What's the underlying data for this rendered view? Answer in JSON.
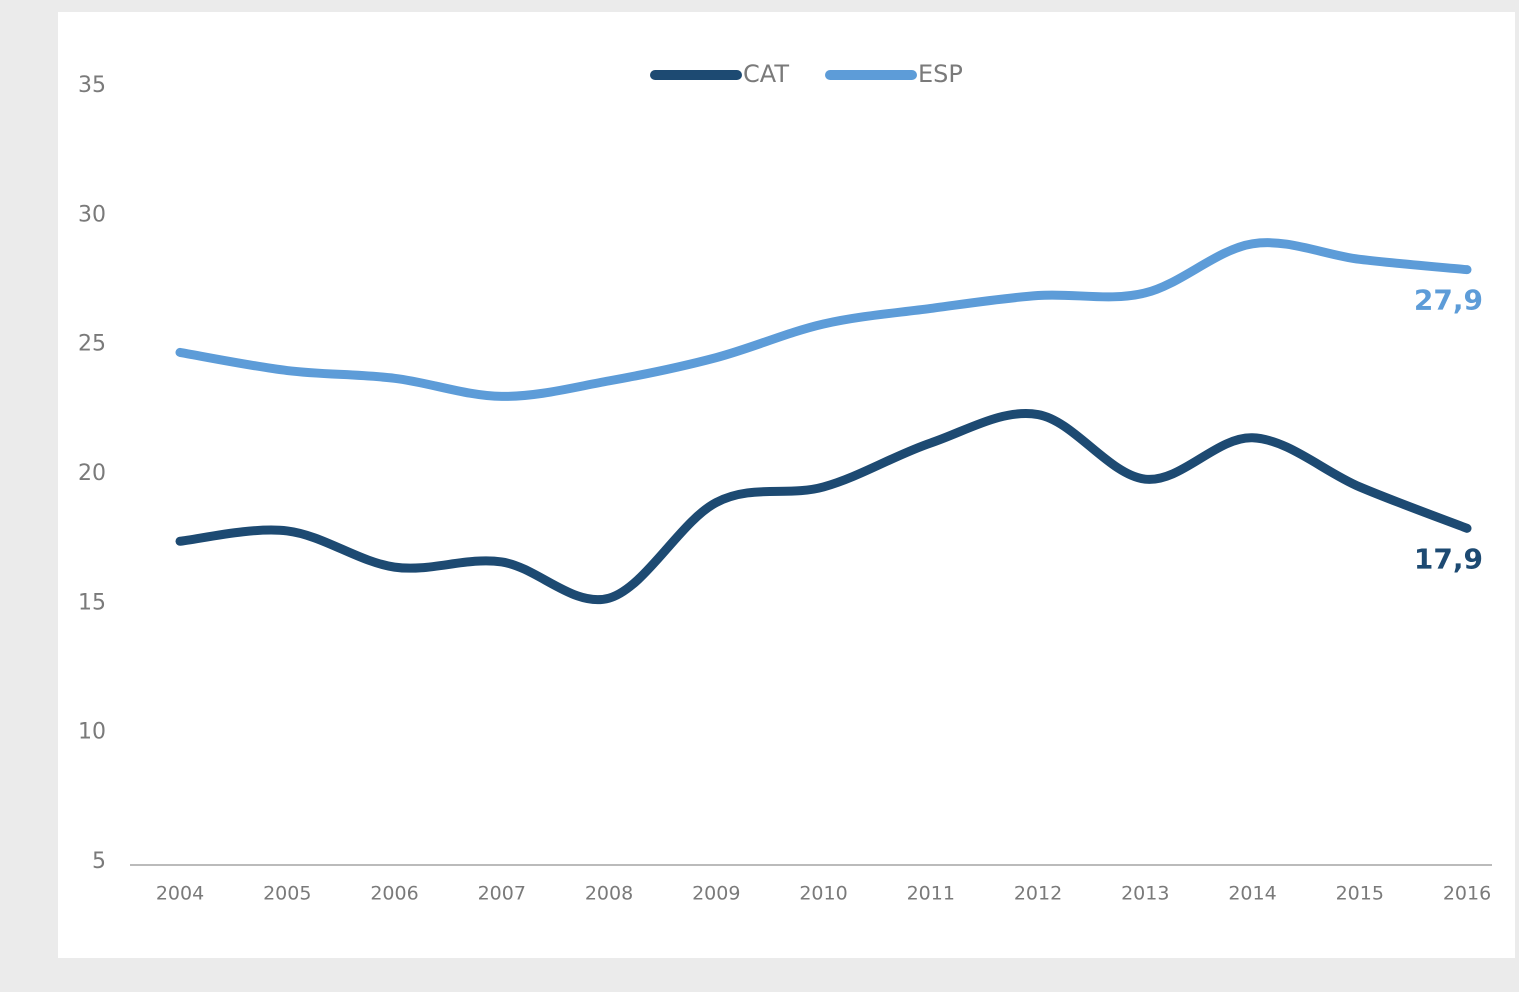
{
  "chart_data": {
    "type": "line",
    "categories": [
      "2004",
      "2005",
      "2006",
      "2007",
      "2008",
      "2009",
      "2010",
      "2011",
      "2012",
      "2013",
      "2014",
      "2015",
      "2016"
    ],
    "series": [
      {
        "name": "CAT",
        "color": "#1d4a72",
        "values": [
          17.4,
          17.8,
          16.4,
          16.6,
          15.2,
          18.9,
          19.5,
          21.2,
          22.3,
          19.8,
          21.4,
          19.5,
          17.9
        ],
        "value_labels": [
          null,
          null,
          null,
          null,
          null,
          null,
          null,
          null,
          null,
          null,
          null,
          null,
          "17,9"
        ]
      },
      {
        "name": "ESP",
        "color": "#5d9cd8",
        "values": [
          24.7,
          24.0,
          23.7,
          23.0,
          23.6,
          24.5,
          25.8,
          26.4,
          26.9,
          27.0,
          28.9,
          28.3,
          27.9
        ],
        "value_labels": [
          null,
          null,
          null,
          null,
          null,
          null,
          null,
          null,
          null,
          null,
          null,
          null,
          "27,9"
        ]
      }
    ],
    "ylim": [
      5,
      35
    ],
    "yticks": [
      5,
      10,
      15,
      20,
      25,
      30,
      35
    ],
    "grid": false,
    "legend": "top"
  }
}
